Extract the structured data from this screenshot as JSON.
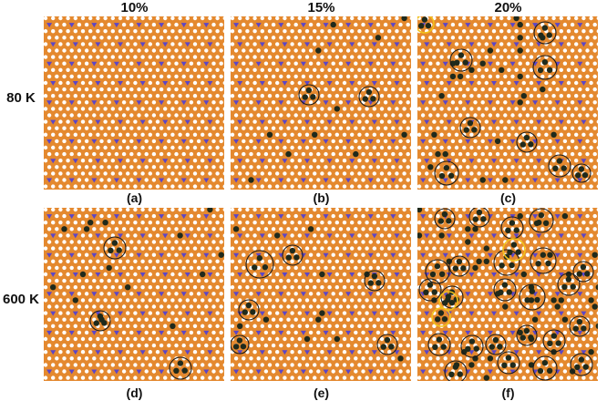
{
  "column_headers": [
    "10%",
    "15%",
    "20%"
  ],
  "row_labels": [
    "80 K",
    "600 K"
  ],
  "panels": [
    {
      "label": "(a)",
      "column": "10%",
      "row": "80 K"
    },
    {
      "label": "(b)",
      "column": "15%",
      "row": "80 K"
    },
    {
      "label": "(c)",
      "column": "20%",
      "row": "80 K"
    },
    {
      "label": "(d)",
      "column": "10%",
      "row": "600 K"
    },
    {
      "label": "(e)",
      "column": "15%",
      "row": "600 K"
    },
    {
      "label": "(f)",
      "column": "20%",
      "row": "600 K"
    }
  ],
  "colors": {
    "background_lattice": "#e4892f",
    "site_dot": "#ffffff",
    "triangle_marker": "#5b46c8",
    "cluster_atom": "#1f2a1c",
    "circle_outline": "#1a1a1a",
    "highlight_circle": "#f2c21a"
  }
}
